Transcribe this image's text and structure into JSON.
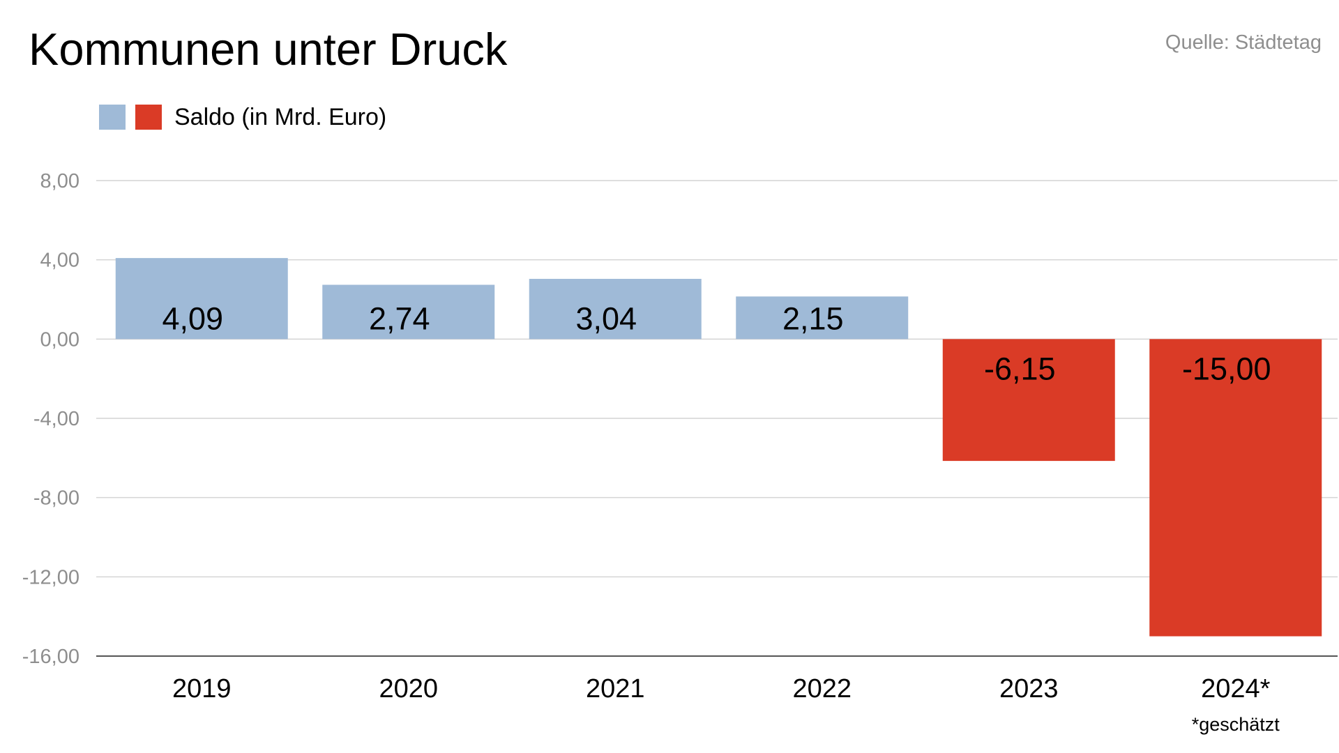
{
  "header": {
    "title": "Kommunen unter Druck",
    "source": "Quelle: Städtetag"
  },
  "colors": {
    "positive": "#9fbad7",
    "negative": "#da3b26",
    "grid": "#d4d4d4",
    "axis": "#555555",
    "tick_text": "#8e8e8e",
    "text": "#000000"
  },
  "chart_data": {
    "type": "bar",
    "title": "Kommunen unter Druck",
    "xlabel": "",
    "ylabel": "",
    "categories": [
      "2019",
      "2020",
      "2021",
      "2022",
      "2023",
      "2024*"
    ],
    "series": [
      {
        "name": "Saldo (in Mrd. Euro)",
        "values": [
          4.09,
          2.74,
          3.04,
          2.15,
          -6.15,
          -15.0
        ],
        "labels": [
          "4,09",
          "2,74",
          "3,04",
          "2,15",
          "-6,15",
          "-15,00"
        ]
      }
    ],
    "ylim": [
      -16,
      8
    ],
    "yticks": [
      8,
      4,
      0,
      -4,
      -8,
      -12,
      -16
    ],
    "ytick_labels": [
      "8,00",
      "4,00",
      "0,00",
      "-4,00",
      "-8,00",
      "-12,00",
      "-16,00"
    ],
    "grid": true,
    "legend": "top-left",
    "annotation": "*geschätzt"
  }
}
